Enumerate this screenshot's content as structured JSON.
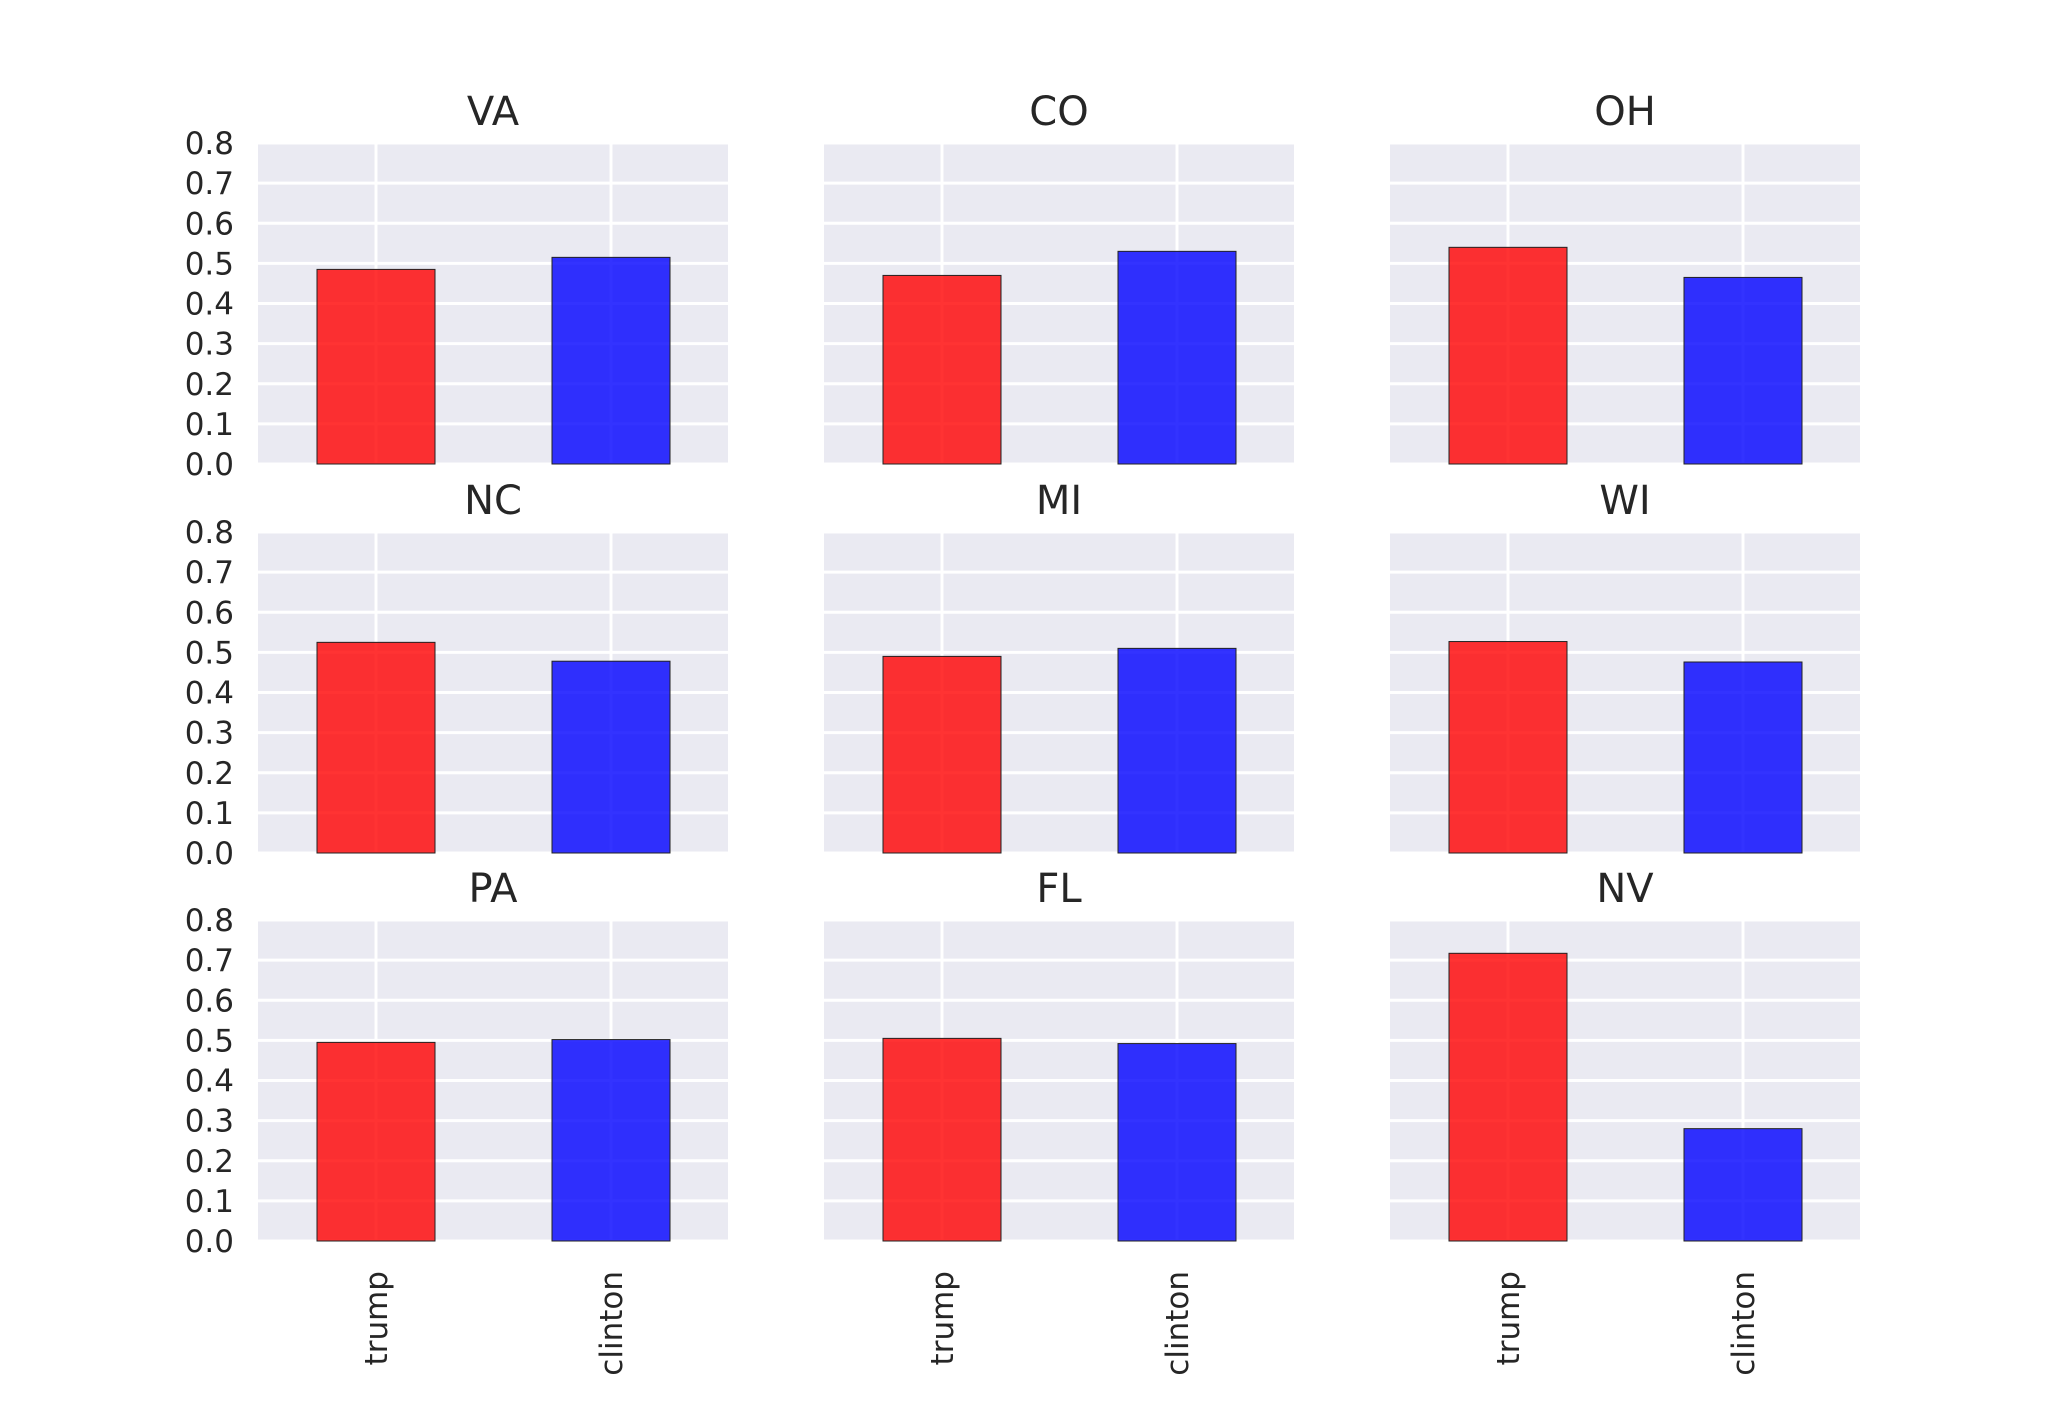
{
  "chart_data": {
    "type": "bar",
    "categories": [
      "trump",
      "clinton"
    ],
    "ylim": [
      0,
      0.8
    ],
    "yticks": [
      "0.0",
      "0.1",
      "0.2",
      "0.3",
      "0.4",
      "0.5",
      "0.6",
      "0.7",
      "0.8"
    ],
    "grid": true,
    "colors": {
      "trump": "#ff0000",
      "clinton": "#0000ff",
      "background": "#eaeaf2"
    },
    "panels": [
      {
        "title": "VA",
        "values": [
          0.485,
          0.515
        ]
      },
      {
        "title": "CO",
        "values": [
          0.47,
          0.53
        ]
      },
      {
        "title": "OH",
        "values": [
          0.54,
          0.465
        ]
      },
      {
        "title": "NC",
        "values": [
          0.525,
          0.478
        ]
      },
      {
        "title": "MI",
        "values": [
          0.49,
          0.51
        ]
      },
      {
        "title": "WI",
        "values": [
          0.527,
          0.476
        ]
      },
      {
        "title": "PA",
        "values": [
          0.495,
          0.502
        ]
      },
      {
        "title": "FL",
        "values": [
          0.505,
          0.492
        ]
      },
      {
        "title": "NV",
        "values": [
          0.717,
          0.28
        ]
      }
    ]
  }
}
